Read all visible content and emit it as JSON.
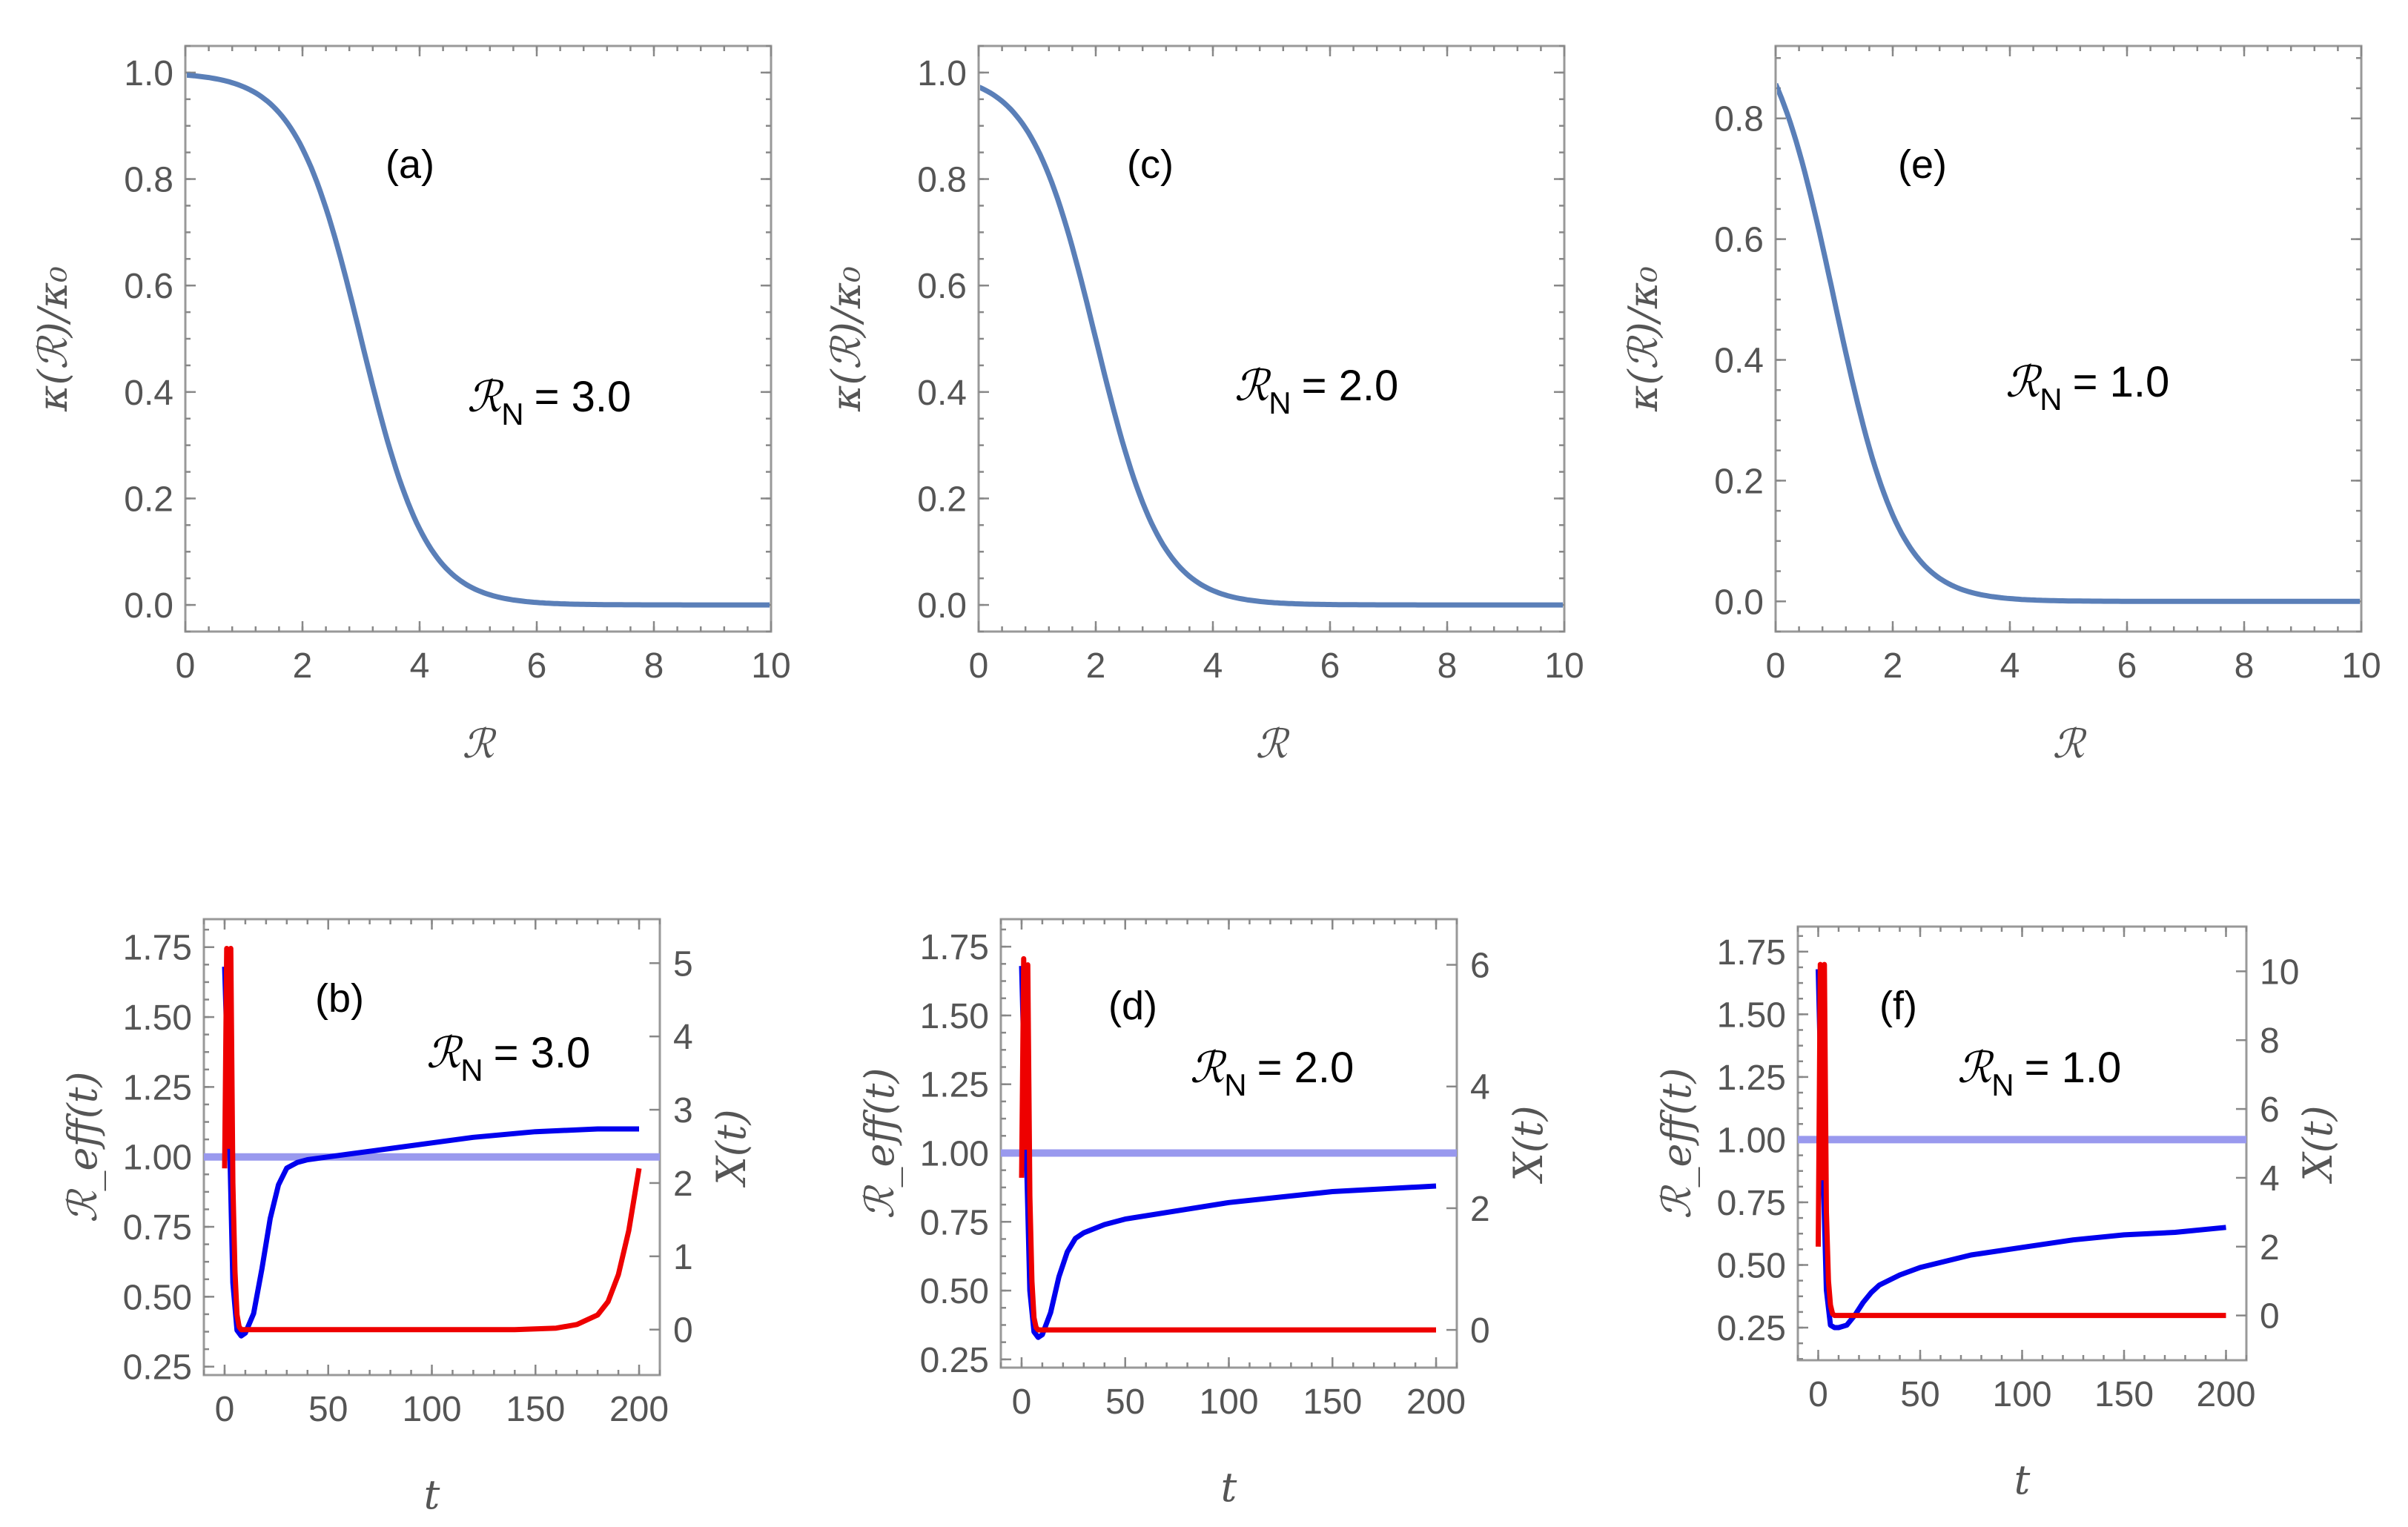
{
  "chart_data": [
    {
      "panel": "(a)",
      "type": "line",
      "title": "",
      "xlabel": "ℛ",
      "ylabel": "κ(ℛ)/κ₀",
      "annotation_sym": "ℛ",
      "annotation_sub": "N",
      "annotation_value": "= 3.0",
      "RN": 3.0,
      "sigma": 0.9,
      "xlim": [
        0,
        10
      ],
      "ylim": [
        -0.05,
        1.05
      ],
      "xticks": [
        "0",
        "2",
        "4",
        "6",
        "8",
        "10"
      ],
      "xtick_values": [
        0,
        2,
        4,
        6,
        8,
        10
      ],
      "yticks": [
        "0.0",
        "0.2",
        "0.4",
        "0.6",
        "0.8",
        "1.0"
      ],
      "ytick_values": [
        0,
        0.2,
        0.4,
        0.6,
        0.8,
        1.0
      ],
      "line_color": "#5a7fb8"
    },
    {
      "panel": "(c)",
      "type": "line",
      "title": "",
      "xlabel": "ℛ",
      "ylabel": "κ(ℛ)/κ₀",
      "annotation_sym": "ℛ",
      "annotation_sub": "N",
      "annotation_value": "= 2.0",
      "RN": 2.0,
      "sigma": 0.9,
      "xlim": [
        0,
        10
      ],
      "ylim": [
        -0.05,
        1.05
      ],
      "xticks": [
        "0",
        "2",
        "4",
        "6",
        "8",
        "10"
      ],
      "xtick_values": [
        0,
        2,
        4,
        6,
        8,
        10
      ],
      "yticks": [
        "0.0",
        "0.2",
        "0.4",
        "0.6",
        "0.8",
        "1.0"
      ],
      "ytick_values": [
        0,
        0.2,
        0.4,
        0.6,
        0.8,
        1.0
      ],
      "line_color": "#5a7fb8"
    },
    {
      "panel": "(e)",
      "type": "line",
      "title": "",
      "xlabel": "ℛ",
      "ylabel": "κ(ℛ)/κ₀",
      "annotation_sym": "ℛ",
      "annotation_sub": "N",
      "annotation_value": "= 1.0",
      "RN": 1.0,
      "sigma": 0.9,
      "xlim": [
        0,
        10
      ],
      "ylim": [
        -0.05,
        0.92
      ],
      "xticks": [
        "0",
        "2",
        "4",
        "6",
        "8",
        "10"
      ],
      "xtick_values": [
        0,
        2,
        4,
        6,
        8,
        10
      ],
      "yticks": [
        "0.0",
        "0.2",
        "0.4",
        "0.6",
        "0.8"
      ],
      "ytick_values": [
        0,
        0.2,
        0.4,
        0.6,
        0.8
      ],
      "line_color": "#5a7fb8"
    },
    {
      "panel": "(b)",
      "type": "line",
      "title": "",
      "xlabel": "t",
      "ylabel": "ℛ_eff(t)",
      "ylabel_right": "X(t)",
      "annotation_sym": "ℛ",
      "annotation_sub": "N",
      "annotation_value": "= 3.0",
      "xlim": [
        -10,
        210
      ],
      "ylim": [
        0.22,
        1.85
      ],
      "y2lim": [
        -0.62,
        5.6
      ],
      "xticks": [
        "0",
        "50",
        "100",
        "150",
        "200"
      ],
      "xtick_values": [
        0,
        50,
        100,
        150,
        200
      ],
      "yticks": [
        "0.25",
        "0.50",
        "0.75",
        "1.00",
        "1.25",
        "1.50",
        "1.75"
      ],
      "ytick_values": [
        0.25,
        0.5,
        0.75,
        1.0,
        1.25,
        1.5,
        1.75
      ],
      "y2ticks": [
        "0",
        "1",
        "2",
        "3",
        "4",
        "5"
      ],
      "y2tick_values": [
        0,
        1,
        2,
        3,
        4,
        5
      ],
      "threshold": 1.0,
      "threshold_color": "#9999ee",
      "series": [
        {
          "name": "R_eff(t)",
          "axis": "left",
          "color": "#0000ee",
          "x": [
            0,
            2,
            4,
            6,
            8,
            10,
            14,
            18,
            22,
            26,
            30,
            35,
            40,
            50,
            60,
            80,
            100,
            120,
            150,
            180,
            200
          ],
          "y": [
            1.68,
            1.2,
            0.55,
            0.38,
            0.36,
            0.37,
            0.44,
            0.6,
            0.78,
            0.9,
            0.96,
            0.98,
            0.99,
            1.0,
            1.01,
            1.03,
            1.05,
            1.07,
            1.09,
            1.1,
            1.1
          ]
        },
        {
          "name": "X(t)",
          "axis": "right",
          "color": "#ee0000",
          "x": [
            0,
            1,
            2,
            3,
            4,
            5,
            6,
            7,
            8,
            10,
            20,
            60,
            100,
            140,
            160,
            170,
            180,
            185,
            190,
            195,
            200
          ],
          "y": [
            2.2,
            5.2,
            2.5,
            5.2,
            2.0,
            0.8,
            0.2,
            0.04,
            0.0,
            0.0,
            0.0,
            0.0,
            0.0,
            0.0,
            0.02,
            0.07,
            0.2,
            0.38,
            0.75,
            1.35,
            2.2
          ]
        }
      ]
    },
    {
      "panel": "(d)",
      "type": "line",
      "title": "",
      "xlabel": "t",
      "ylabel": "ℛ_eff(t)",
      "ylabel_right": "X(t)",
      "annotation_sym": "ℛ",
      "annotation_sub": "N",
      "annotation_value": "= 2.0",
      "xlim": [
        -10,
        210
      ],
      "ylim": [
        0.22,
        1.85
      ],
      "y2lim": [
        -0.62,
        6.75
      ],
      "xticks": [
        "0",
        "50",
        "100",
        "150",
        "200"
      ],
      "xtick_values": [
        0,
        50,
        100,
        150,
        200
      ],
      "yticks": [
        "0.25",
        "0.50",
        "0.75",
        "1.00",
        "1.25",
        "1.50",
        "1.75"
      ],
      "ytick_values": [
        0.25,
        0.5,
        0.75,
        1.0,
        1.25,
        1.5,
        1.75
      ],
      "y2ticks": [
        "0",
        "2",
        "4",
        "6"
      ],
      "y2tick_values": [
        0,
        2,
        4,
        6
      ],
      "threshold": 1.0,
      "threshold_color": "#9999ee",
      "series": [
        {
          "name": "R_eff(t)",
          "axis": "left",
          "color": "#0000ee",
          "x": [
            0,
            2,
            4,
            6,
            8,
            10,
            14,
            18,
            22,
            26,
            30,
            40,
            50,
            75,
            100,
            125,
            150,
            175,
            200
          ],
          "y": [
            1.68,
            1.1,
            0.5,
            0.35,
            0.33,
            0.34,
            0.42,
            0.55,
            0.64,
            0.69,
            0.71,
            0.74,
            0.76,
            0.79,
            0.82,
            0.84,
            0.86,
            0.87,
            0.88
          ]
        },
        {
          "name": "X(t)",
          "axis": "right",
          "color": "#ee0000",
          "x": [
            0,
            1,
            2,
            3,
            4,
            5,
            6,
            7,
            8,
            10,
            20,
            100,
            200
          ],
          "y": [
            2.5,
            6.1,
            3.0,
            6.0,
            2.2,
            0.8,
            0.2,
            0.04,
            0.0,
            0.0,
            0.0,
            0.0,
            0.0
          ]
        }
      ]
    },
    {
      "panel": "(f)",
      "type": "line",
      "title": "",
      "xlabel": "t",
      "ylabel": "ℛ_eff(t)",
      "ylabel_right": "X(t)",
      "annotation_sym": "ℛ",
      "annotation_sub": "N",
      "annotation_value": "= 1.0",
      "xlim": [
        -10,
        210
      ],
      "ylim": [
        0.12,
        1.85
      ],
      "y2lim": [
        -1.3,
        11.3
      ],
      "xticks": [
        "0",
        "50",
        "100",
        "150",
        "200"
      ],
      "xtick_values": [
        0,
        50,
        100,
        150,
        200
      ],
      "yticks": [
        "0.25",
        "0.50",
        "0.75",
        "1.00",
        "1.25",
        "1.50",
        "1.75"
      ],
      "ytick_values": [
        0.25,
        0.5,
        0.75,
        1.0,
        1.25,
        1.5,
        1.75
      ],
      "y2ticks": [
        "0",
        "2",
        "4",
        "6",
        "8",
        "10"
      ],
      "y2tick_values": [
        0,
        2,
        4,
        6,
        8,
        10
      ],
      "threshold": 1.0,
      "threshold_color": "#9999ee",
      "series": [
        {
          "name": "R_eff(t)",
          "axis": "left",
          "color": "#0000ee",
          "x": [
            0,
            2,
            4,
            6,
            8,
            10,
            14,
            18,
            22,
            26,
            30,
            40,
            50,
            75,
            100,
            125,
            150,
            175,
            200
          ],
          "y": [
            1.68,
            1.0,
            0.4,
            0.26,
            0.25,
            0.25,
            0.26,
            0.3,
            0.35,
            0.39,
            0.42,
            0.46,
            0.49,
            0.54,
            0.57,
            0.6,
            0.62,
            0.63,
            0.65
          ]
        },
        {
          "name": "X(t)",
          "axis": "right",
          "color": "#ee0000",
          "x": [
            0,
            1,
            2,
            3,
            4,
            5,
            6,
            7,
            8,
            10,
            20,
            100,
            200
          ],
          "y": [
            2.0,
            10.2,
            4.0,
            10.2,
            3.0,
            1.0,
            0.3,
            0.05,
            0.0,
            0.0,
            0.0,
            0.0,
            0.0
          ]
        }
      ]
    }
  ]
}
